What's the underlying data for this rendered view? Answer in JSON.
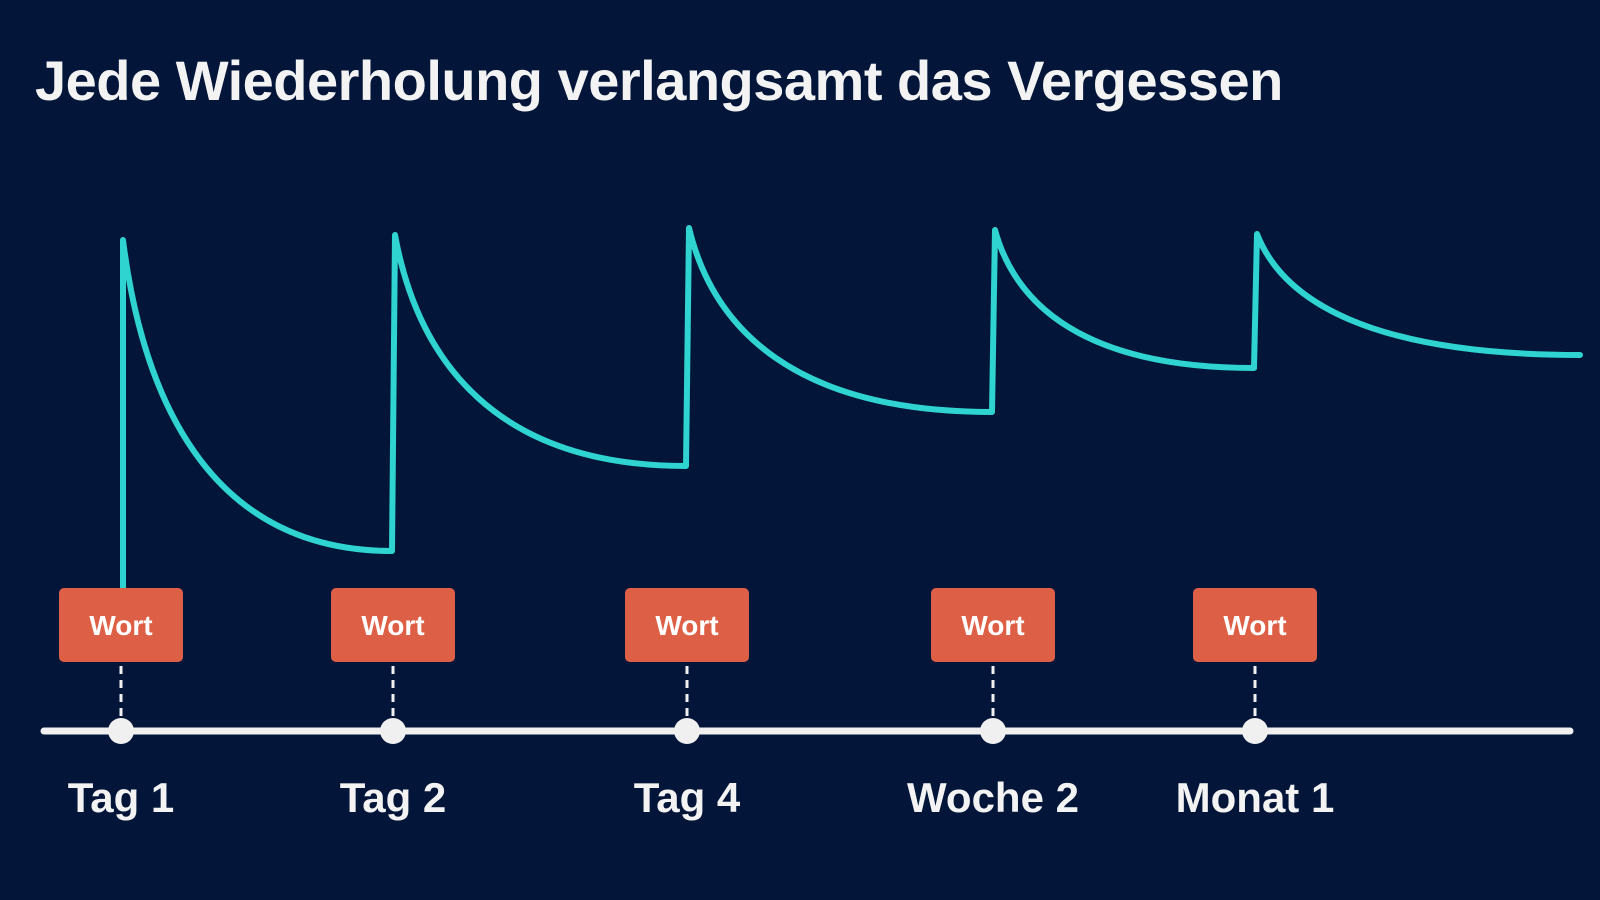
{
  "title": "Jede Wiederholung verlangsamt das Vergessen",
  "colors": {
    "background": "#03163a",
    "curve": "#2fd3d0",
    "card": "#dd6046",
    "timeline": "#f0f0f0",
    "text": "#f3f3f3"
  },
  "reviews": [
    {
      "card_label": "Wort",
      "time_label": "Tag 1"
    },
    {
      "card_label": "Wort",
      "time_label": "Tag 2"
    },
    {
      "card_label": "Wort",
      "time_label": "Tag 4"
    },
    {
      "card_label": "Wort",
      "time_label": "Woche 2"
    },
    {
      "card_label": "Wort",
      "time_label": "Monat 1"
    }
  ]
}
